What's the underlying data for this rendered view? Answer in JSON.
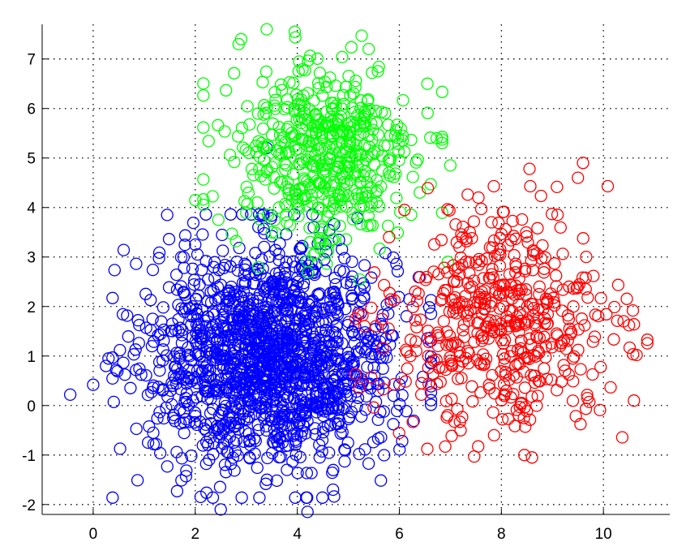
{
  "chart_data": {
    "type": "scatter",
    "marker": "circle-open",
    "title": "",
    "xlabel": "",
    "ylabel": "",
    "xlim": [
      -1,
      11.3
    ],
    "ylim": [
      -2.2,
      7.7
    ],
    "xticks": [
      0,
      2,
      4,
      6,
      8,
      10
    ],
    "yticks": [
      -2,
      -1,
      0,
      1,
      2,
      3,
      4,
      5,
      6,
      7
    ],
    "grid": true,
    "grid_style": "dotted",
    "legend": false,
    "box": "open-top-right",
    "series": [
      {
        "color": "#0000ff",
        "count": 1500,
        "center": [
          3.5,
          1.0
        ],
        "spread": [
          1.2,
          1.1
        ],
        "outliers": [
          [
            -0.45,
            0.22
          ],
          [
            0.0,
            0.42
          ],
          [
            0.25,
            0.8
          ],
          [
            0.3,
            0.95
          ],
          [
            0.45,
            0.72
          ],
          [
            2.0,
            3.25
          ],
          [
            1.45,
            3.85
          ],
          [
            4.2,
            -2.15
          ],
          [
            2.5,
            -2.1
          ],
          [
            3.4,
            5.2
          ],
          [
            4.7,
            -1.7
          ]
        ]
      },
      {
        "color": "#00ff00",
        "count": 500,
        "center": [
          4.5,
          5.0
        ],
        "spread": [
          0.9,
          0.95
        ],
        "outliers": [
          [
            3.4,
            7.6
          ],
          [
            2.9,
            7.4
          ],
          [
            2.85,
            7.3
          ],
          [
            3.95,
            7.55
          ],
          [
            5.4,
            7.2
          ],
          [
            2.0,
            4.15
          ],
          [
            6.55,
            6.5
          ],
          [
            7.0,
            4.85
          ],
          [
            6.95,
            2.9
          ],
          [
            6.4,
            4.3
          ]
        ]
      },
      {
        "color": "#ff0000",
        "count": 500,
        "center": [
          8.0,
          1.7
        ],
        "spread": [
          1.1,
          1.05
        ],
        "outliers": [
          [
            9.6,
            4.9
          ],
          [
            9.5,
            4.6
          ],
          [
            8.55,
            4.78
          ],
          [
            10.65,
            1.02
          ],
          [
            10.5,
            1.62
          ],
          [
            8.6,
            -1.05
          ],
          [
            8.45,
            -1.0
          ],
          [
            6.9,
            -0.83
          ],
          [
            7.2,
            -0.5
          ],
          [
            5.8,
            3.4
          ],
          [
            7.55,
            4.2
          ],
          [
            6.1,
            3.95
          ]
        ]
      }
    ]
  }
}
